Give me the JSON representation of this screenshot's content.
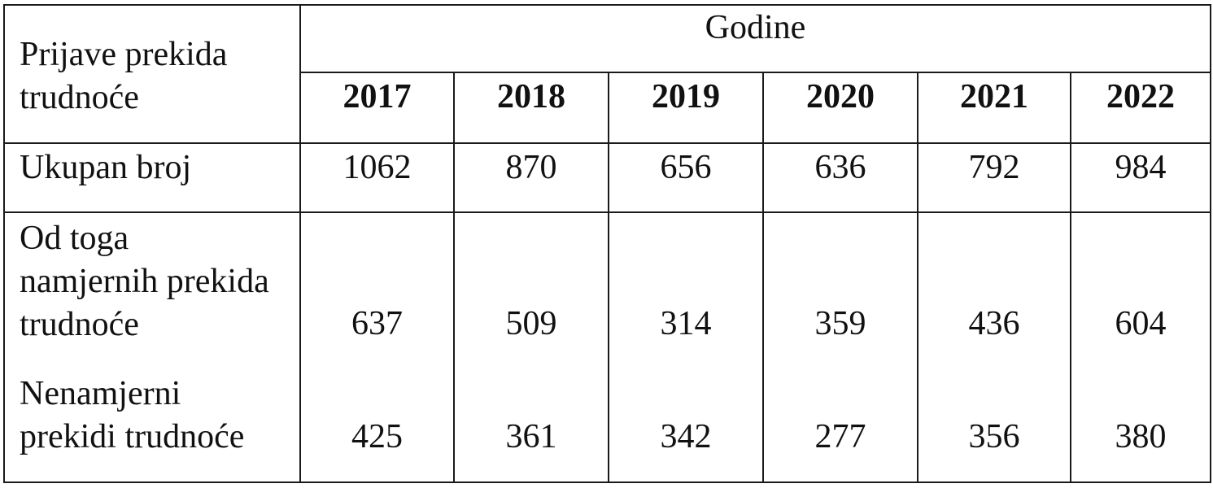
{
  "table": {
    "header": {
      "row_label_line1": "Prijave prekida",
      "row_label_line2": "trudnoće",
      "group_label": "Godine",
      "years": [
        "2017",
        "2018",
        "2019",
        "2020",
        "2021",
        "2022"
      ]
    },
    "rows": [
      {
        "label_lines": [
          "Ukupan broj"
        ],
        "values": [
          "1062",
          "870",
          "656",
          "636",
          "792",
          "984"
        ]
      },
      {
        "label_lines": [
          "Od toga",
          "namjernih prekida",
          "trudnoće"
        ],
        "values": [
          "637",
          "509",
          "314",
          "359",
          "436",
          "604"
        ]
      },
      {
        "label_lines": [
          "Nenamjerni",
          "prekidi trudnoće"
        ],
        "values": [
          "425",
          "361",
          "342",
          "277",
          "356",
          "380"
        ]
      }
    ]
  }
}
